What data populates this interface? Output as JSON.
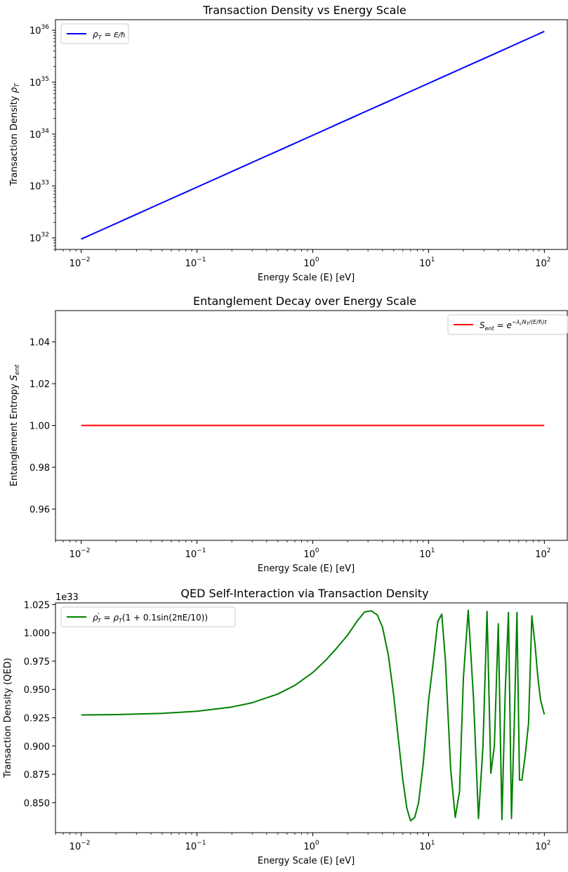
{
  "figure": {
    "background": "#ffffff"
  },
  "chart_data": [
    {
      "type": "line",
      "title": "Transaction Density vs Energy Scale",
      "xlabel": "Energy Scale (E) [eV]",
      "ylabel": "Transaction Density ρ_T",
      "xscale": "log",
      "yscale": "log",
      "xlim": [
        0.006,
        160
      ],
      "ylim": [
        6e+31,
        1.6e+36
      ],
      "x_ticks": [
        0.01,
        0.1,
        1,
        10,
        100
      ],
      "x_tick_labels": [
        [
          "10",
          "−2"
        ],
        [
          "10",
          "−1"
        ],
        [
          "10",
          "0"
        ],
        [
          "10",
          "1"
        ],
        [
          "10",
          "2"
        ]
      ],
      "y_ticks": [
        1e+32,
        1e+33,
        1e+34,
        1e+35,
        1e+36
      ],
      "y_tick_labels": [
        [
          "10",
          "32"
        ],
        [
          "10",
          "33"
        ],
        [
          "10",
          "34"
        ],
        [
          "10",
          "35"
        ],
        [
          "10",
          "36"
        ]
      ],
      "grid": false,
      "legend": "upper left",
      "series": [
        {
          "name": "ρ_T = E/ħ",
          "color": "#0000ff",
          "x": [
            0.01,
            100
          ],
          "y": [
            9.5e+31,
            9.5e+35
          ]
        }
      ]
    },
    {
      "type": "line",
      "title": "Entanglement Decay over Energy Scale",
      "xlabel": "Energy Scale (E) [eV]",
      "ylabel": "Entanglement Entropy S_ent",
      "xscale": "log",
      "yscale": "linear",
      "xlim": [
        0.006,
        160
      ],
      "ylim": [
        0.945,
        1.055
      ],
      "x_ticks": [
        0.01,
        0.1,
        1,
        10,
        100
      ],
      "x_tick_labels": [
        [
          "10",
          "−2"
        ],
        [
          "10",
          "−1"
        ],
        [
          "10",
          "0"
        ],
        [
          "10",
          "1"
        ],
        [
          "10",
          "2"
        ]
      ],
      "y_ticks": [
        0.96,
        0.98,
        1.0,
        1.02,
        1.04
      ],
      "y_tick_labels": [
        "0.96",
        "0.98",
        "1.00",
        "1.02",
        "1.04"
      ],
      "grid": false,
      "legend": "upper right",
      "series": [
        {
          "name": "S_ent = e^{−λ_c N_T/(E/ħ) t}",
          "color": "#ff0000",
          "x": [
            0.01,
            100
          ],
          "y": [
            1.0,
            1.0
          ]
        }
      ]
    },
    {
      "type": "line",
      "title": "QED Self-Interaction via Transaction Density",
      "xlabel": "Energy Scale (E) [eV]",
      "ylabel": "Transaction Density (QED)",
      "offset_label": "1e33",
      "xscale": "log",
      "yscale": "linear",
      "xlim": [
        0.006,
        160
      ],
      "ylim": [
        0.8235,
        1.0265
      ],
      "x_ticks": [
        0.01,
        0.1,
        1,
        10,
        100
      ],
      "x_tick_labels": [
        [
          "10",
          "−2"
        ],
        [
          "10",
          "−1"
        ],
        [
          "10",
          "0"
        ],
        [
          "10",
          "1"
        ],
        [
          "10",
          "2"
        ]
      ],
      "y_ticks": [
        0.85,
        0.875,
        0.9,
        0.925,
        0.95,
        0.975,
        1.0,
        1.025
      ],
      "y_tick_labels": [
        "0.850",
        "0.875",
        "0.900",
        "0.925",
        "0.950",
        "0.975",
        "1.000",
        "1.025"
      ],
      "grid": false,
      "legend": "upper left",
      "series": [
        {
          "name": "ρ'_T = ρ_T(1 + 0.1sin(2πE/10))",
          "color": "#008000",
          "x": [
            0.01,
            0.02,
            0.05,
            0.1,
            0.2,
            0.3,
            0.5,
            0.7,
            1.0,
            1.3,
            1.6,
            2.0,
            2.4,
            2.8,
            3.2,
            3.6,
            4.0,
            4.5,
            5.0,
            5.5,
            6.0,
            6.5,
            7.0,
            7.6,
            8.2,
            9.0,
            10.0,
            11.0,
            12.0,
            13.0,
            14.0,
            15.5,
            17.0,
            18.5,
            20.0,
            22.0,
            24.5,
            27.0,
            29.5,
            32.0,
            34.5,
            37.0,
            40.0,
            43.0,
            46.0,
            49.0,
            52.0,
            55.0,
            58.0,
            61.0,
            64.0,
            68.0,
            73.0,
            78.0,
            83.0,
            88.0,
            93.0,
            100.0
          ],
          "y": [
            0.9275,
            0.9278,
            0.9289,
            0.9307,
            0.9345,
            0.9383,
            0.946,
            0.9536,
            0.965,
            0.976,
            0.9862,
            0.998,
            1.01,
            1.0185,
            1.0195,
            1.016,
            1.005,
            0.98,
            0.945,
            0.905,
            0.87,
            0.845,
            0.834,
            0.837,
            0.85,
            0.885,
            0.94,
            0.975,
            1.01,
            1.0165,
            0.975,
            0.88,
            0.837,
            0.86,
            0.96,
            1.02,
            0.94,
            0.836,
            0.9,
            1.019,
            0.876,
            0.9,
            1.008,
            0.835,
            0.95,
            1.018,
            0.836,
            0.92,
            1.018,
            0.87,
            0.87,
            0.89,
            0.92,
            1.015,
            0.99,
            0.96,
            0.94,
            0.928
          ]
        }
      ]
    }
  ]
}
